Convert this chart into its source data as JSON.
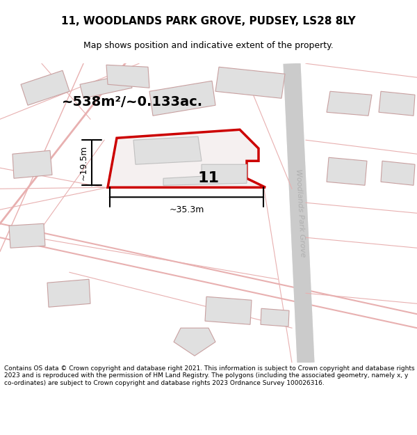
{
  "title_line1": "11, WOODLANDS PARK GROVE, PUDSEY, LS28 8LY",
  "title_line2": "Map shows position and indicative extent of the property.",
  "area_label": "~538m²/~0.133ac.",
  "label_11": "11",
  "dim_width": "~35.3m",
  "dim_height": "~19.5m",
  "street_label": "Woodlands Park Grove",
  "footer_text": "Contains OS data © Crown copyright and database right 2021. This information is subject to Crown copyright and database rights 2023 and is reproduced with the permission of HM Land Registry. The polygons (including the associated geometry, namely x, y co-ordinates) are subject to Crown copyright and database rights 2023 Ordnance Survey 100026316.",
  "bg_color": "#ffffff",
  "map_bg": "#f5f0f0",
  "road_color": "#d9d9d9",
  "plot_fill": "#f0f0f0",
  "plot_outline": "#c8a0a0",
  "highlight_fill": "#f5f0f0",
  "highlight_outline": "#cc0000",
  "building_fill": "#e0e0e0",
  "building_outline": "#c0c0c0",
  "dim_color": "#000000",
  "text_color": "#000000",
  "street_text_color": "#b0b0b0"
}
